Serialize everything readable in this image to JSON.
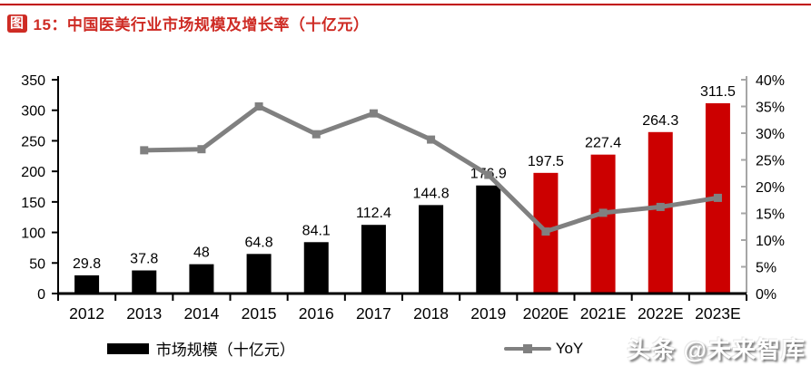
{
  "header": {
    "badge": "图",
    "title": "15：中国医美行业市场规模及增长率（十亿元）"
  },
  "colors": {
    "title_red": "#CE2B24",
    "top_rule": "#C00000",
    "bar_actual": "#000000",
    "bar_forecast": "#CC0000",
    "yoy_line": "#808080",
    "axis_black": "#000000",
    "axis_gray": "#A6A6A6",
    "label_text": "#000000"
  },
  "chart_data": {
    "type": "bar",
    "title": "中国医美行业市场规模及增长率（十亿元）",
    "categories": [
      "2012",
      "2013",
      "2014",
      "2015",
      "2016",
      "2017",
      "2018",
      "2019",
      "2020E",
      "2021E",
      "2022E",
      "2023E"
    ],
    "series": [
      {
        "name": "市场规模（十亿元）",
        "type": "bar",
        "axis": "left",
        "values": [
          29.8,
          37.8,
          48,
          64.8,
          84.1,
          112.4,
          144.8,
          176.9,
          197.5,
          227.4,
          264.3,
          311.5
        ],
        "labels": [
          "29.8",
          "37.8",
          "48",
          "64.8",
          "84.1",
          "112.4",
          "144.8",
          "176.9",
          "197.5",
          "227.4",
          "264.3",
          "311.5"
        ],
        "bar_styles": [
          "actual",
          "actual",
          "actual",
          "actual",
          "actual",
          "actual",
          "actual",
          "actual",
          "forecast",
          "forecast",
          "forecast",
          "forecast"
        ]
      },
      {
        "name": "YoY",
        "type": "line",
        "axis": "right",
        "values": [
          null,
          26.8,
          27.0,
          35.0,
          29.8,
          33.7,
          28.8,
          22.2,
          11.6,
          15.1,
          16.2,
          17.9
        ]
      }
    ],
    "left_axis": {
      "min": 0,
      "max": 350,
      "step": 50,
      "tick_labels": [
        "0",
        "50",
        "100",
        "150",
        "200",
        "250",
        "300",
        "350"
      ]
    },
    "right_axis": {
      "min": 0,
      "max": 40,
      "step": 5,
      "tick_labels": [
        "0%",
        "5%",
        "10%",
        "15%",
        "20%",
        "25%",
        "30%",
        "35%",
        "40%"
      ]
    },
    "grid": false,
    "legend_position": "bottom"
  },
  "legend": {
    "items": [
      {
        "label": "市场规模（十亿元）",
        "swatch": "bar"
      },
      {
        "label": "YoY",
        "swatch": "line"
      }
    ]
  },
  "watermark": {
    "text": "头条 @未来智库"
  }
}
